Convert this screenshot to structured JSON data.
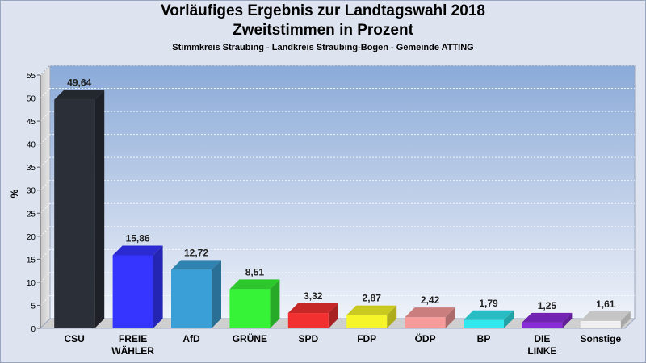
{
  "header": {
    "title_line1": "Vorläufiges Ergebnis zur Landtagswahl 2018",
    "title_line2": "Zweitstimmen in Prozent",
    "subtitle": "Stimmkreis Straubing - Landkreis Straubing-Bogen - Gemeinde ATTING"
  },
  "chart_data": {
    "type": "bar",
    "title": "Vorläufiges Ergebnis zur Landtagswahl 2018 Zweitstimmen in Prozent",
    "subtitle": "Stimmkreis Straubing - Landkreis Straubing-Bogen - Gemeinde ATTING",
    "xlabel": "",
    "ylabel": "%",
    "ylim": [
      0,
      55
    ],
    "yticks": [
      0,
      5,
      10,
      15,
      20,
      25,
      30,
      35,
      40,
      45,
      50,
      55
    ],
    "grid": true,
    "categories": [
      "CSU",
      "FREIE WÄHLER",
      "AfD",
      "GRÜNE",
      "SPD",
      "FDP",
      "ÖDP",
      "BP",
      "DIE LINKE",
      "Sonstige"
    ],
    "category_lines": [
      [
        "CSU"
      ],
      [
        "FREIE",
        "WÄHLER"
      ],
      [
        "AfD"
      ],
      [
        "GRÜNE"
      ],
      [
        "SPD"
      ],
      [
        "FDP"
      ],
      [
        "ÖDP"
      ],
      [
        "BP"
      ],
      [
        "DIE",
        "LINKE"
      ],
      [
        "Sonstige"
      ]
    ],
    "values": [
      49.64,
      15.86,
      12.72,
      8.51,
      3.32,
      2.87,
      2.42,
      1.79,
      1.25,
      1.61
    ],
    "value_labels": [
      "49,64",
      "15,86",
      "12,72",
      "8,51",
      "3,32",
      "2,87",
      "2,42",
      "1,79",
      "1,25",
      "1,61"
    ],
    "colors": [
      "#2b2f38",
      "#3535ff",
      "#3a9fd6",
      "#37f337",
      "#f23030",
      "#f5f52a",
      "#f79a9a",
      "#30e8ee",
      "#8a2bd8",
      "#f0f0f0"
    ]
  }
}
